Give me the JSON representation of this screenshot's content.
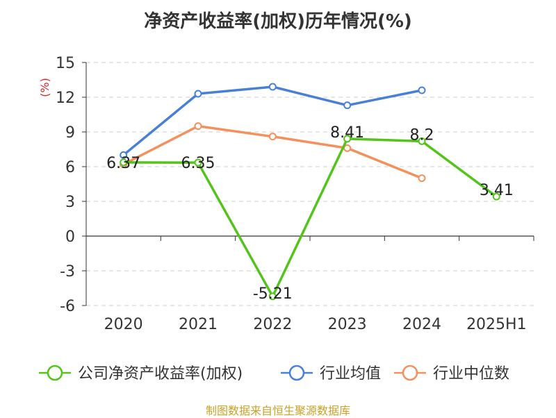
{
  "chart_data": {
    "type": "line",
    "title": "净资产收益率(加权)历年情况(%)",
    "ylabel": "(%)",
    "categories": [
      "2020",
      "2021",
      "2022",
      "2023",
      "2024",
      "2025H1"
    ],
    "ylim": [
      -6,
      15
    ],
    "yticks": [
      15,
      12,
      9,
      6,
      3,
      0,
      -3,
      -6
    ],
    "grid": true,
    "legend_position": "bottom",
    "series": [
      {
        "name": "公司净资产收益率(加权)",
        "color": "#52c41a",
        "values": [
          6.37,
          6.35,
          -5.21,
          8.41,
          8.2,
          3.41
        ],
        "labels": [
          "6.37",
          "6.35",
          "-5.21",
          "8.41",
          "8.2",
          "3.41"
        ]
      },
      {
        "name": "行业均值",
        "color": "#4a7fd8",
        "values": [
          7.0,
          12.3,
          12.9,
          11.3,
          12.6,
          null
        ]
      },
      {
        "name": "行业中位数",
        "color": "#f4905c",
        "values": [
          6.2,
          9.5,
          8.6,
          7.6,
          5.0,
          null
        ]
      }
    ]
  },
  "ylabel_color": "#d62728",
  "source": "制图数据来自恒生聚源数据库"
}
